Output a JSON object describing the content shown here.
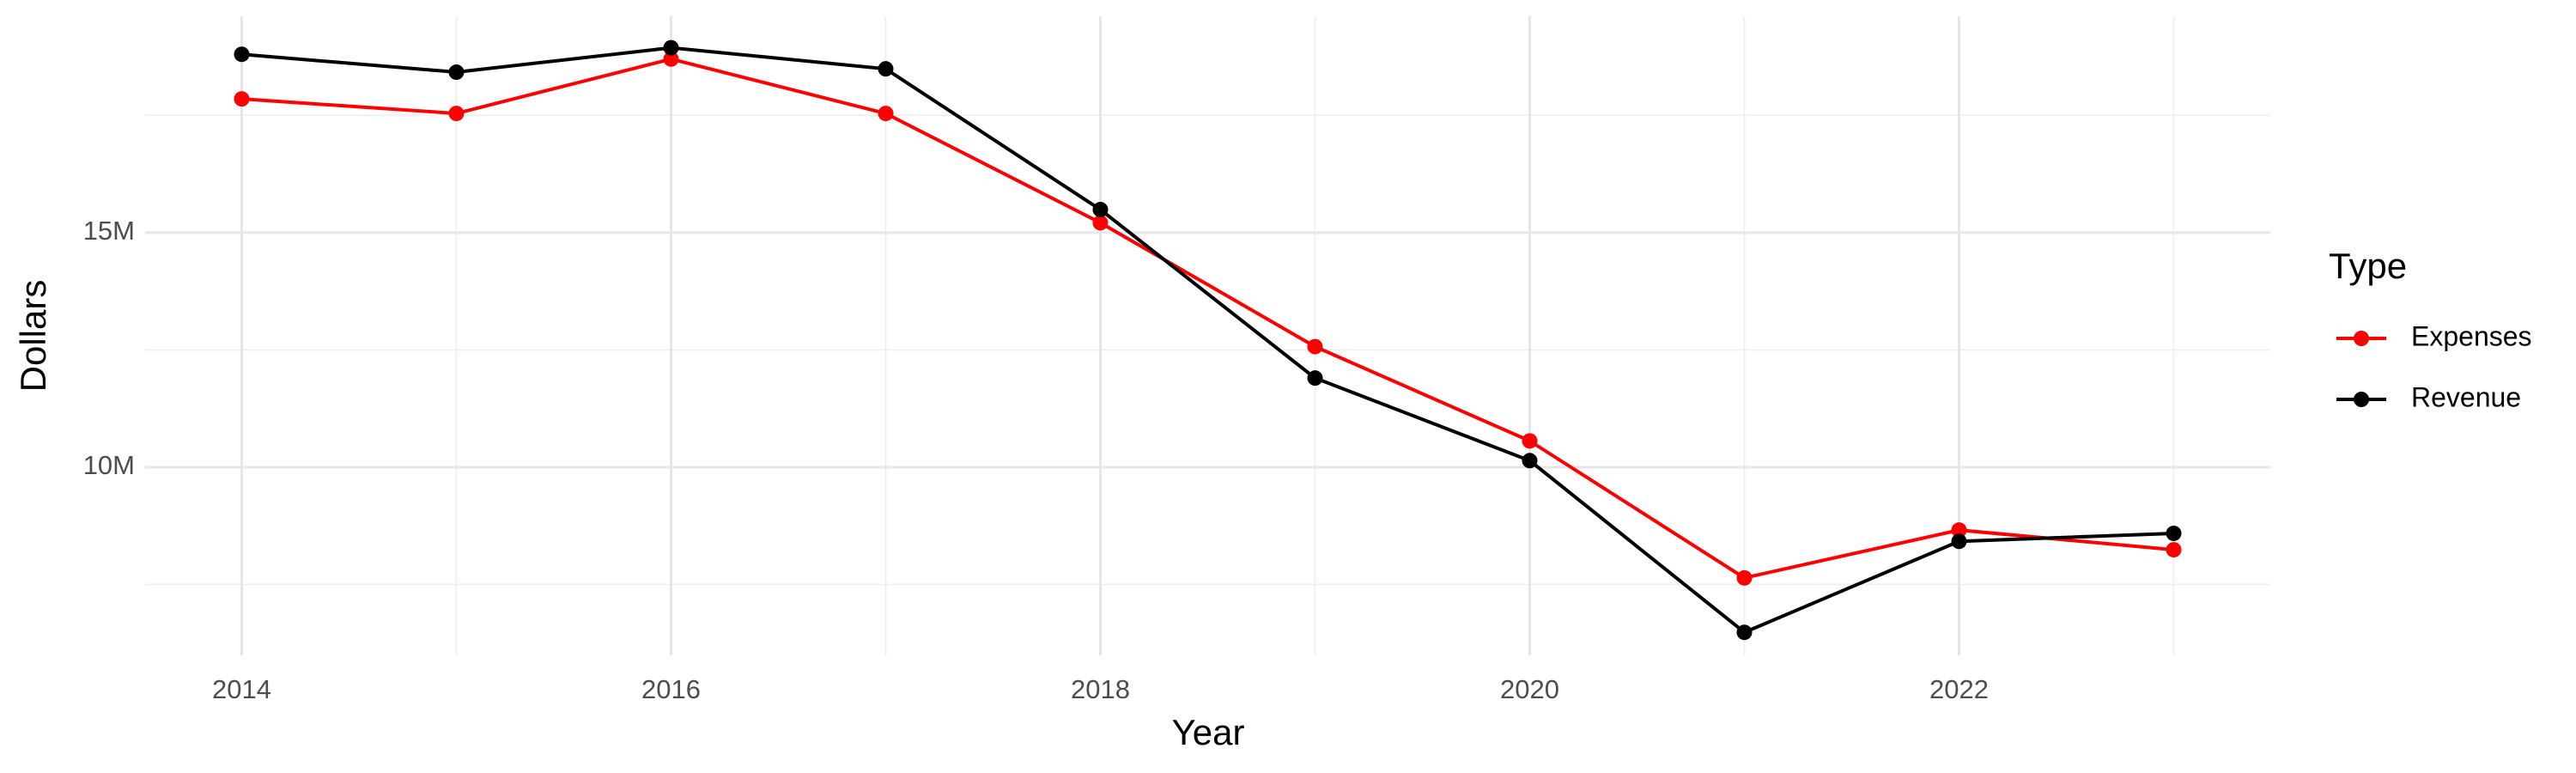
{
  "chart_data": {
    "type": "line",
    "x_label": "Year",
    "y_label": "Dollars",
    "legend_title": "Type",
    "legend_position": "right",
    "x": [
      2014,
      2015,
      2016,
      2017,
      2018,
      2019,
      2020,
      2021,
      2022,
      2023
    ],
    "series": [
      {
        "name": "Expenses",
        "color": "#ff0000",
        "values": [
          17850000,
          17540000,
          18700000,
          17540000,
          15210000,
          12570000,
          10560000,
          7640000,
          8660000,
          8240000
        ]
      },
      {
        "name": "Revenue",
        "color": "#000000",
        "values": [
          18800000,
          18420000,
          18940000,
          18490000,
          15490000,
          11900000,
          10140000,
          6480000,
          8420000,
          8590000
        ]
      }
    ],
    "xlim": [
      2013.55,
      2023.45
    ],
    "ylim": [
      5990000,
      19610000
    ],
    "xticks": [
      2014,
      2016,
      2018,
      2020,
      2022
    ],
    "minor_xticks": [
      2015,
      2017,
      2019,
      2021,
      2023
    ],
    "yticks": [
      {
        "value": 10000000,
        "label": "10M"
      },
      {
        "value": 15000000,
        "label": "15M"
      }
    ],
    "minor_yticks": [
      7500000,
      12500000,
      17500000
    ],
    "grid": true
  }
}
